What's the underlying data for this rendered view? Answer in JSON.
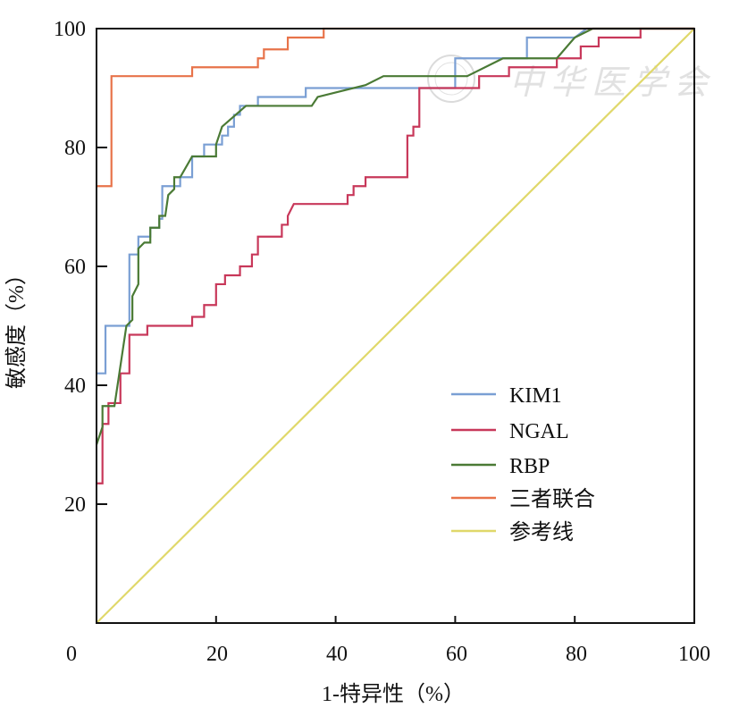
{
  "chart_data": {
    "type": "line",
    "title": "",
    "xlabel": "1-特异性（%）",
    "ylabel": "敏感度（%）",
    "xlim": [
      0,
      100
    ],
    "ylim": [
      0,
      100
    ],
    "x_ticks": [
      "0",
      "20",
      "40",
      "60",
      "80",
      "100"
    ],
    "y_ticks": [
      "20",
      "40",
      "60",
      "80",
      "100"
    ],
    "grid": false,
    "legend_position": "bottom-right",
    "watermark": "中华医学会",
    "series": [
      {
        "name": "KIM1",
        "color": "#7a9fd4",
        "points": [
          [
            0,
            42
          ],
          [
            1.5,
            42
          ],
          [
            1.5,
            50
          ],
          [
            5.5,
            50
          ],
          [
            5.5,
            62
          ],
          [
            7,
            62
          ],
          [
            7,
            65
          ],
          [
            9,
            65
          ],
          [
            9,
            66.5
          ],
          [
            10.5,
            66.5
          ],
          [
            10.5,
            68
          ],
          [
            11,
            68
          ],
          [
            11,
            73.5
          ],
          [
            14,
            73.5
          ],
          [
            14,
            75
          ],
          [
            16,
            75
          ],
          [
            16,
            78.5
          ],
          [
            18,
            78.5
          ],
          [
            18,
            80.5
          ],
          [
            21,
            80.5
          ],
          [
            21,
            82
          ],
          [
            22,
            82
          ],
          [
            22,
            83.5
          ],
          [
            23,
            83.5
          ],
          [
            23,
            85.5
          ],
          [
            24,
            85.5
          ],
          [
            24,
            87
          ],
          [
            27,
            87
          ],
          [
            27,
            88.5
          ],
          [
            35,
            88.5
          ],
          [
            35,
            90
          ],
          [
            60,
            90
          ],
          [
            60,
            95
          ],
          [
            72,
            95
          ],
          [
            72,
            98.5
          ],
          [
            80,
            98.5
          ],
          [
            82,
            100
          ],
          [
            100,
            100
          ]
        ]
      },
      {
        "name": "NGAL",
        "color": "#c8385a",
        "points": [
          [
            0,
            23.5
          ],
          [
            1,
            23.5
          ],
          [
            1,
            33.5
          ],
          [
            2,
            33.5
          ],
          [
            2,
            37
          ],
          [
            4,
            37
          ],
          [
            4,
            42
          ],
          [
            5.5,
            42
          ],
          [
            5.5,
            48.5
          ],
          [
            8.5,
            48.5
          ],
          [
            8.5,
            50
          ],
          [
            16,
            50
          ],
          [
            16,
            51.5
          ],
          [
            18,
            51.5
          ],
          [
            18,
            53.5
          ],
          [
            20,
            53.5
          ],
          [
            20,
            57
          ],
          [
            21.5,
            57
          ],
          [
            21.5,
            58.5
          ],
          [
            24,
            58.5
          ],
          [
            24,
            60
          ],
          [
            26,
            60
          ],
          [
            26,
            62
          ],
          [
            27,
            62
          ],
          [
            27,
            65
          ],
          [
            31,
            65
          ],
          [
            31,
            67
          ],
          [
            32,
            67
          ],
          [
            32,
            68.5
          ],
          [
            33,
            70.5
          ],
          [
            42,
            70.5
          ],
          [
            42,
            72
          ],
          [
            43,
            72
          ],
          [
            43,
            73.5
          ],
          [
            45,
            73.5
          ],
          [
            45,
            75
          ],
          [
            52,
            75
          ],
          [
            52,
            82
          ],
          [
            53,
            82
          ],
          [
            53,
            83.5
          ],
          [
            54,
            83.5
          ],
          [
            54,
            90
          ],
          [
            64,
            90
          ],
          [
            64,
            92
          ],
          [
            69,
            92
          ],
          [
            69,
            93.5
          ],
          [
            77,
            93.5
          ],
          [
            77,
            95
          ],
          [
            81,
            95
          ],
          [
            81,
            97
          ],
          [
            84,
            97
          ],
          [
            84,
            98.5
          ],
          [
            91,
            98.5
          ],
          [
            91,
            100
          ],
          [
            100,
            100
          ]
        ]
      },
      {
        "name": "RBP",
        "color": "#4a7a35",
        "points": [
          [
            0,
            30
          ],
          [
            1,
            33
          ],
          [
            1,
            36.5
          ],
          [
            3,
            36.5
          ],
          [
            5,
            50
          ],
          [
            6,
            51
          ],
          [
            6,
            55
          ],
          [
            7,
            57
          ],
          [
            7,
            63
          ],
          [
            8,
            64
          ],
          [
            9,
            64
          ],
          [
            9,
            66.5
          ],
          [
            10.5,
            66.5
          ],
          [
            10.5,
            68.5
          ],
          [
            11.5,
            68.5
          ],
          [
            12,
            72
          ],
          [
            13,
            73
          ],
          [
            13,
            75
          ],
          [
            14,
            75
          ],
          [
            16,
            78.5
          ],
          [
            20,
            78.5
          ],
          [
            20,
            80.5
          ],
          [
            21,
            83.5
          ],
          [
            25,
            87
          ],
          [
            36,
            87
          ],
          [
            37,
            88.5
          ],
          [
            45,
            90.5
          ],
          [
            48,
            92
          ],
          [
            62,
            92
          ],
          [
            68,
            95
          ],
          [
            77,
            95
          ],
          [
            80,
            98.5
          ],
          [
            83,
            100
          ],
          [
            100,
            100
          ]
        ]
      },
      {
        "name": "三者联合",
        "color": "#e8734a",
        "points": [
          [
            0,
            73.5
          ],
          [
            2.5,
            73.5
          ],
          [
            2.5,
            92
          ],
          [
            16,
            92
          ],
          [
            16,
            93.5
          ],
          [
            27,
            93.5
          ],
          [
            27,
            95
          ],
          [
            28,
            95
          ],
          [
            28,
            96.5
          ],
          [
            32,
            96.5
          ],
          [
            32,
            98.5
          ],
          [
            38,
            98.5
          ],
          [
            38,
            100
          ],
          [
            100,
            100
          ]
        ]
      },
      {
        "name": "参考线",
        "color": "#e0d86a",
        "points": [
          [
            0,
            0
          ],
          [
            100,
            100
          ]
        ]
      }
    ]
  }
}
